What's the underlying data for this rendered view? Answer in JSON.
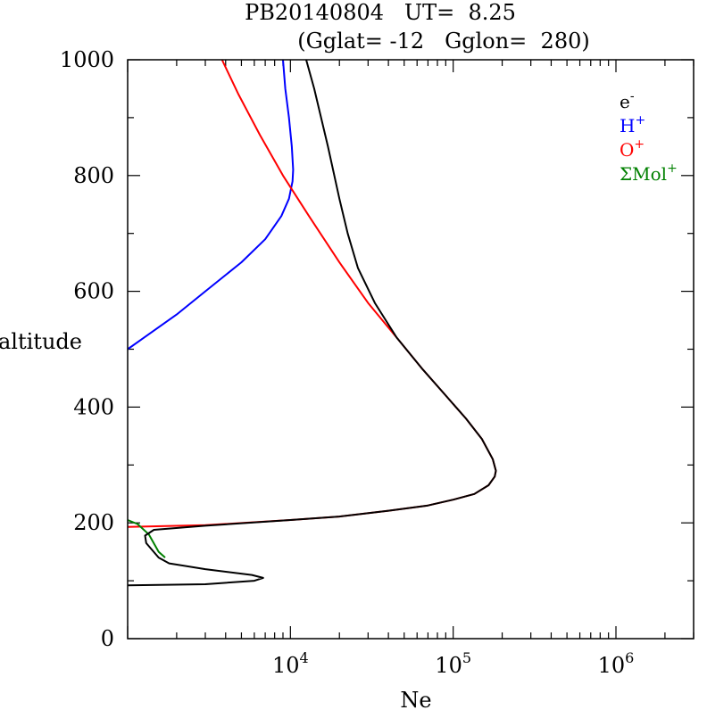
{
  "chart_data": {
    "type": "line",
    "title_line1": "PB20140804   UT=  8.25",
    "title_line2": "(Gglat= -12   Gglon=  280)",
    "xlabel": "Ne",
    "ylabel": "altitude",
    "x_scale": "log",
    "xlim": [
      1000,
      3000000
    ],
    "ylim": [
      0,
      1000
    ],
    "y_ticks": [
      0,
      200,
      400,
      600,
      800,
      1000
    ],
    "y_tick_labels": [
      "0",
      "200",
      "400",
      "600",
      "800",
      "1000"
    ],
    "x_ticks": [
      10000,
      100000,
      1000000
    ],
    "x_tick_labels": [
      {
        "base": "10",
        "exp": "4"
      },
      {
        "base": "10",
        "exp": "5"
      },
      {
        "base": "10",
        "exp": "6"
      }
    ],
    "legend_position": "top-right",
    "series": [
      {
        "key": "e",
        "name": "e",
        "sup": "-",
        "color": "#000000",
        "points": [
          [
            1000,
            92
          ],
          [
            3000,
            94
          ],
          [
            6000,
            100
          ],
          [
            6800,
            105
          ],
          [
            5800,
            110
          ],
          [
            3000,
            120
          ],
          [
            1800,
            130
          ],
          [
            1550,
            140
          ],
          [
            1300,
            165
          ],
          [
            1280,
            178
          ],
          [
            1450,
            188
          ],
          [
            3000,
            195
          ],
          [
            10000,
            205
          ],
          [
            20000,
            211
          ],
          [
            40000,
            221
          ],
          [
            70000,
            230
          ],
          [
            100000,
            240
          ],
          [
            135000,
            250
          ],
          [
            165000,
            265
          ],
          [
            180000,
            280
          ],
          [
            183000,
            290
          ],
          [
            175000,
            310
          ],
          [
            150000,
            345
          ],
          [
            120000,
            380
          ],
          [
            90000,
            420
          ],
          [
            65000,
            465
          ],
          [
            45000,
            520
          ],
          [
            33000,
            580
          ],
          [
            26000,
            640
          ],
          [
            22500,
            700
          ],
          [
            20000,
            760
          ],
          [
            17000,
            850
          ],
          [
            14000,
            950
          ],
          [
            12500,
            1000
          ]
        ]
      },
      {
        "key": "h",
        "name": "H",
        "sup": "+",
        "color": "#0000ff",
        "points": [
          [
            1000,
            500
          ],
          [
            2000,
            560
          ],
          [
            3000,
            600
          ],
          [
            5000,
            650
          ],
          [
            7000,
            690
          ],
          [
            8800,
            730
          ],
          [
            9800,
            760
          ],
          [
            10300,
            790
          ],
          [
            10400,
            810
          ],
          [
            10200,
            850
          ],
          [
            9800,
            900
          ],
          [
            9300,
            950
          ],
          [
            9000,
            1000
          ]
        ]
      },
      {
        "key": "o",
        "name": "O",
        "sup": "+",
        "color": "#ff0000",
        "points": [
          [
            1000,
            193
          ],
          [
            3000,
            196
          ],
          [
            10000,
            205
          ],
          [
            20000,
            211
          ],
          [
            40000,
            221
          ],
          [
            70000,
            230
          ],
          [
            100000,
            240
          ],
          [
            135000,
            250
          ],
          [
            165000,
            265
          ],
          [
            180000,
            280
          ],
          [
            183000,
            290
          ],
          [
            175000,
            310
          ],
          [
            150000,
            345
          ],
          [
            120000,
            380
          ],
          [
            90000,
            420
          ],
          [
            65000,
            465
          ],
          [
            45000,
            520
          ],
          [
            30000,
            580
          ],
          [
            20000,
            650
          ],
          [
            13000,
            730
          ],
          [
            9000,
            800
          ],
          [
            6500,
            870
          ],
          [
            4800,
            940
          ],
          [
            3800,
            1000
          ]
        ]
      },
      {
        "key": "mol",
        "name": "ΣMol",
        "sup": "+",
        "color": "#008000",
        "points": [
          [
            1000,
            205
          ],
          [
            1150,
            198
          ],
          [
            1350,
            180
          ],
          [
            1550,
            150
          ],
          [
            1700,
            140
          ]
        ]
      }
    ]
  }
}
